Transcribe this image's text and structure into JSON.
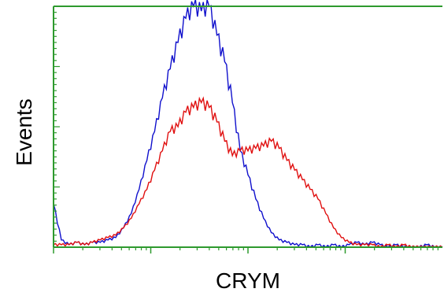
{
  "chart_data": {
    "type": "line",
    "title": "",
    "xlabel": "CRYM",
    "ylabel": "Events",
    "xlim": [
      0,
      100
    ],
    "ylim": [
      0,
      100
    ],
    "log_x": true,
    "grid": false,
    "frame_color": "#2e9a2e",
    "x": [
      0,
      2,
      4,
      6,
      8,
      10,
      12,
      14,
      16,
      18,
      20,
      22,
      24,
      26,
      28,
      30,
      32,
      34,
      36,
      38,
      40,
      42,
      44,
      46,
      48,
      50,
      52,
      54,
      56,
      58,
      60,
      62,
      64,
      66,
      68,
      70,
      72,
      74,
      76,
      78,
      80,
      82,
      84,
      86,
      88,
      90,
      92,
      94,
      96,
      98,
      100
    ],
    "series": [
      {
        "color": "#1010cc",
        "values": [
          18,
          3,
          1,
          2,
          1,
          2,
          2,
          3,
          4,
          8,
          14,
          24,
          36,
          48,
          62,
          74,
          85,
          95,
          100,
          98,
          100,
          88,
          77,
          60,
          40,
          30,
          20,
          12,
          6,
          3,
          2,
          1,
          1,
          0,
          1,
          0,
          1,
          0,
          1,
          2,
          1,
          2,
          1,
          0,
          1,
          0,
          0,
          0,
          1,
          0,
          0
        ]
      },
      {
        "color": "#e01010",
        "values": [
          1,
          1,
          1,
          2,
          1,
          2,
          3,
          4,
          5,
          8,
          12,
          18,
          24,
          32,
          40,
          48,
          50,
          56,
          58,
          60,
          58,
          52,
          44,
          38,
          40,
          40,
          41,
          42,
          44,
          41,
          36,
          32,
          28,
          24,
          20,
          14,
          8,
          4,
          2,
          1,
          1,
          1,
          0,
          1,
          0,
          1,
          0,
          0,
          0,
          0,
          0
        ]
      }
    ]
  }
}
